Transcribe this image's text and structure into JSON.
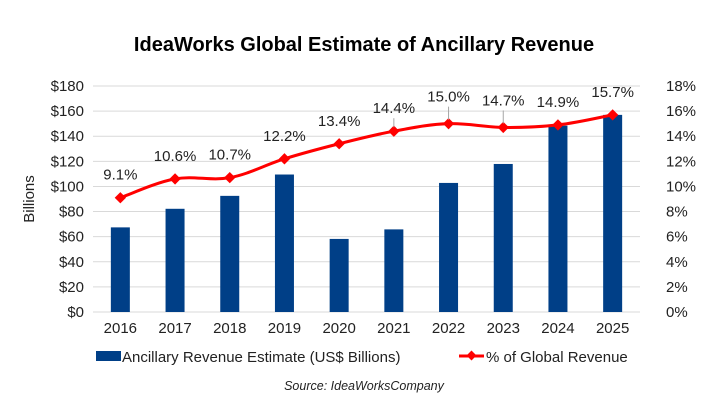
{
  "chart_data": {
    "type": "bar",
    "title": "IdeaWorks Global Estimate of Ancillary Revenue",
    "categories": [
      "2016",
      "2017",
      "2018",
      "2019",
      "2020",
      "2021",
      "2022",
      "2023",
      "2024",
      "2025"
    ],
    "series": [
      {
        "name": "Ancillary Revenue Estimate (US$ Billions)",
        "type": "bar",
        "axis": "left",
        "color": "#003f87",
        "values": [
          67.4,
          82.2,
          92.5,
          109.5,
          58.2,
          65.8,
          102.8,
          117.9,
          148.4,
          157.0
        ]
      },
      {
        "name": "% of Global Revenue",
        "type": "line",
        "axis": "right",
        "color": "#ff0000",
        "values": [
          9.1,
          10.6,
          10.7,
          12.2,
          13.4,
          14.4,
          15.0,
          14.7,
          14.9,
          15.7
        ],
        "labels": [
          "9.1%",
          "10.6%",
          "10.7%",
          "12.2%",
          "13.4%",
          "14.4%",
          "15.0%",
          "14.7%",
          "14.9%",
          "15.7%"
        ]
      }
    ],
    "ylabel": "Billions",
    "ylim": [
      0,
      180
    ],
    "yticks": [
      "$0",
      "$20",
      "$40",
      "$60",
      "$80",
      "$100",
      "$120",
      "$140",
      "$160",
      "$180"
    ],
    "y2lim": [
      0,
      18
    ],
    "y2ticks": [
      "0%",
      "2%",
      "4%",
      "6%",
      "8%",
      "10%",
      "12%",
      "14%",
      "16%",
      "18%"
    ],
    "xlabel": "",
    "grid": true,
    "legend": "bottom",
    "source": "Source:  IdeaWorksCompany"
  }
}
